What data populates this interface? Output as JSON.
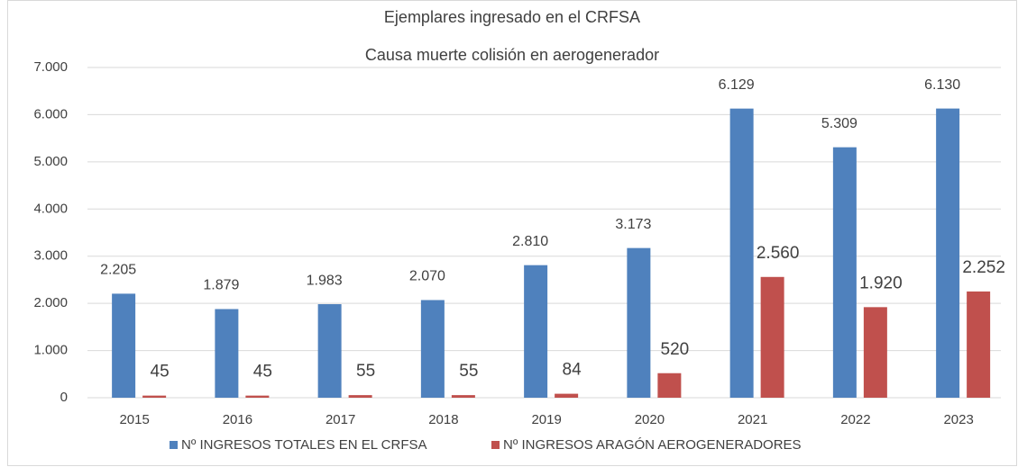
{
  "chart_data": {
    "type": "bar",
    "title": "Ejemplares ingresado en el CRFSA",
    "subtitle": "Causa muerte colisión en aerogenerador",
    "categories": [
      "2015",
      "2016",
      "2017",
      "2018",
      "2019",
      "2020",
      "2021",
      "2022",
      "2023"
    ],
    "series": [
      {
        "name": "Nº INGRESOS TOTALES EN EL CRFSA",
        "color": "#4f81bd",
        "values": [
          2205,
          1879,
          1983,
          2070,
          2810,
          3173,
          6129,
          5309,
          6130
        ],
        "value_labels": [
          "2.205",
          "1.879",
          "1.983",
          "2.070",
          "2.810",
          "3.173",
          "6.129",
          "5.309",
          "6.130"
        ]
      },
      {
        "name": "Nº INGRESOS ARAGÓN AEROGENERADORES",
        "color": "#c0504d",
        "values": [
          45,
          45,
          55,
          55,
          84,
          520,
          2560,
          1920,
          2252
        ],
        "value_labels": [
          "45",
          "45",
          "55",
          "55",
          "84",
          "520",
          "2.560",
          "1.920",
          "2.252"
        ]
      }
    ],
    "ylim": [
      0,
      7000
    ],
    "yticks": [
      0,
      {
        "value": 1000,
        "label": "1.000"
      },
      {
        "value": 2000,
        "label": "2.000"
      },
      {
        "value": 3000,
        "label": "3.000"
      },
      {
        "value": 4000,
        "label": "4.000"
      },
      {
        "value": 5000,
        "label": "5.000"
      },
      {
        "value": 6000,
        "label": "6.000"
      },
      {
        "value": 7000,
        "label": "7.000"
      }
    ],
    "grid": true,
    "legend": "bottom"
  }
}
